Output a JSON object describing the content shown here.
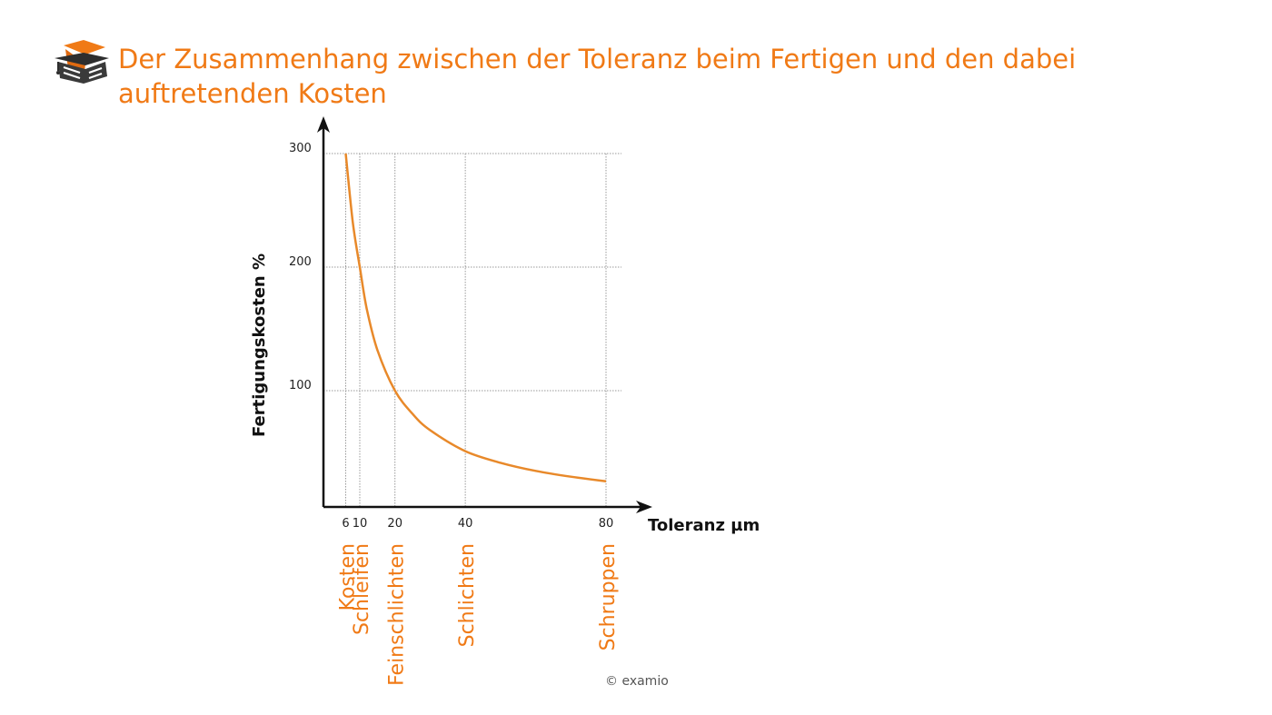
{
  "header": {
    "title": "Der Zusammenhang zwischen der Toleranz beim Fertigen und den dabei auftretenden Kosten",
    "logo_icon": "graduation-cap-book-icon"
  },
  "chart_data": {
    "type": "line",
    "title": "",
    "xlabel": "Toleranz µm",
    "ylabel": "Fertigungskosten %",
    "x_ticks": [
      6,
      10,
      20,
      40,
      80
    ],
    "y_ticks": [
      100,
      200,
      300
    ],
    "xlim": [
      0,
      86
    ],
    "ylim": [
      0,
      310
    ],
    "grid": true,
    "series": [
      {
        "color": "#e8892a",
        "x": [
          6,
          8,
          10,
          12,
          15,
          20,
          25,
          30,
          40,
          50,
          60,
          70,
          80
        ],
        "y": [
          300,
          240,
          200,
          166,
          133,
          100,
          80,
          66,
          48,
          38,
          31,
          26,
          22
        ]
      }
    ],
    "process_labels": [
      {
        "x": 6,
        "label": "Kosten"
      },
      {
        "x": 10,
        "label": "Schleifen"
      },
      {
        "x": 20,
        "label": "Feinschlichten"
      },
      {
        "x": 40,
        "label": "Schlichten"
      },
      {
        "x": 80,
        "label": "Schruppen"
      }
    ]
  },
  "colors": {
    "accent": "#f07a16",
    "curve": "#e8892a",
    "axis": "#111111",
    "grid": "#9a9a9a"
  },
  "footer": {
    "copyright": "© examio"
  }
}
